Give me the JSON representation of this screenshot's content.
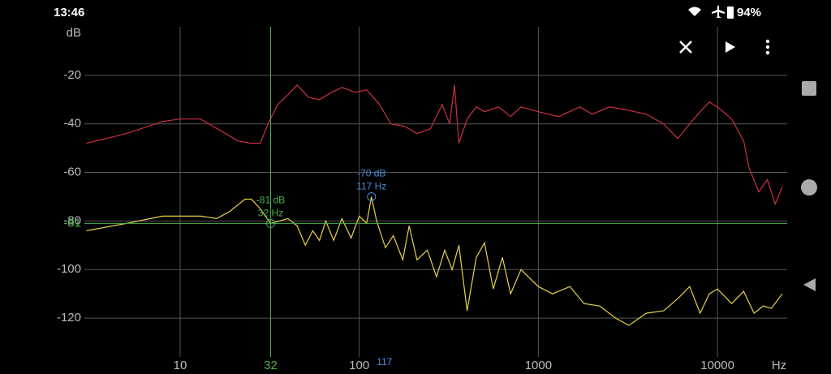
{
  "status_bar": {
    "time": "13:46",
    "battery": "94%"
  },
  "chart_data": {
    "type": "line",
    "y_label": "dB",
    "x_unit": "Hz",
    "log_x": true,
    "grid": true,
    "xlim": [
      2.92,
      24500
    ],
    "ylim": [
      -136,
      0
    ],
    "xticks": [
      10,
      100,
      1000,
      10000
    ],
    "yticks": [
      -20,
      -40,
      -60,
      -80,
      -100,
      -120
    ],
    "series": [
      {
        "color": "#c8323c",
        "x": [
          3,
          5,
          8,
          10,
          13,
          17,
          21,
          25,
          28,
          31,
          35,
          40,
          45,
          52,
          60,
          70,
          80,
          95,
          110,
          130,
          150,
          180,
          210,
          250,
          290,
          320,
          340,
          360,
          400,
          450,
          500,
          600,
          700,
          800,
          1000,
          1300,
          1700,
          2000,
          2500,
          3000,
          4000,
          5000,
          6000,
          7000,
          8000,
          9000,
          10000,
          12000,
          14000,
          15000,
          17000,
          19000,
          21000,
          23000
        ],
        "values": [
          -48,
          -44,
          -39,
          -38,
          -38,
          -43,
          -47,
          -48,
          -48,
          -40,
          -32,
          -28,
          -24,
          -29,
          -30,
          -27,
          -25,
          -27,
          -26,
          -32,
          -40,
          -41,
          -44,
          -42,
          -32,
          -40,
          -24,
          -48,
          -38,
          -33,
          -35,
          -33,
          -37,
          -33,
          -35,
          -37,
          -33,
          -36,
          -33,
          -34,
          -36,
          -40,
          -46,
          -40,
          -35,
          -31,
          -33,
          -38,
          -47,
          -58,
          -68,
          -63,
          -73,
          -66
        ]
      },
      {
        "color": "#e8d24a",
        "x": [
          3,
          5,
          8,
          10,
          13,
          16,
          19,
          23,
          25,
          28,
          32,
          40,
          45,
          50,
          55,
          60,
          65,
          72,
          80,
          90,
          100,
          110,
          117,
          125,
          140,
          155,
          175,
          190,
          210,
          240,
          270,
          300,
          330,
          360,
          400,
          450,
          500,
          560,
          630,
          700,
          800,
          1000,
          1200,
          1500,
          1800,
          2200,
          2700,
          3200,
          4000,
          5000,
          6000,
          7000,
          8000,
          9000,
          10000,
          12000,
          14000,
          16000,
          18000,
          20000,
          23000
        ],
        "values": [
          -84,
          -81,
          -78,
          -78,
          -78,
          -79,
          -76,
          -71,
          -71,
          -75,
          -81,
          -79,
          -82,
          -90,
          -84,
          -88,
          -80,
          -88,
          -79,
          -87,
          -78,
          -81,
          -70,
          -80,
          -91,
          -86,
          -96,
          -82,
          -96,
          -92,
          -103,
          -92,
          -100,
          -90,
          -117,
          -95,
          -89,
          -108,
          -95,
          -110,
          -100,
          -107,
          -110,
          -107,
          -114,
          -115,
          -120,
          -123,
          -118,
          -117,
          -112,
          -107,
          -118,
          -110,
          -108,
          -114,
          -109,
          -118,
          -115,
          -116,
          -110
        ]
      }
    ],
    "cursors": [
      {
        "x": 32,
        "y": -81,
        "color": "#4caf50",
        "labels": [
          "-81 dB",
          "32 Hz"
        ],
        "hline": true
      },
      {
        "x": 117,
        "y": -70,
        "color": "#4a8fd8",
        "labels": [
          "-70 dB",
          "117 Hz"
        ],
        "hline": false
      }
    ]
  }
}
